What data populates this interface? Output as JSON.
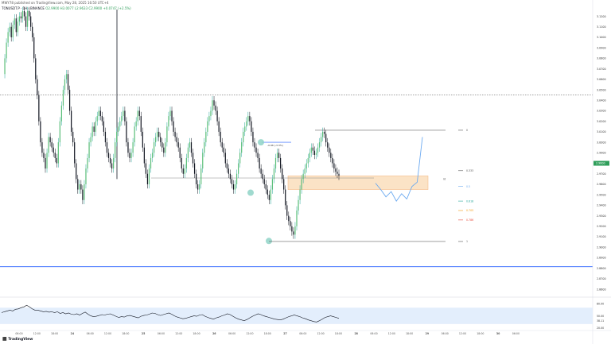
{
  "header": {
    "publisher": "MWY78 published on TradingView.com, May 28, 2025 16:50 UTC+4",
    "symbol": "TONUSDT.P · 1H · BINANCE",
    "ohlc": "O2.9900 H3.0077 L2.9633 C2.9900 +0.0747 (+2.5%)"
  },
  "footer": {
    "brand": "TradingView"
  },
  "colors": {
    "up": "#26a69a",
    "down": "#131722",
    "green_price": "#2f9e5a",
    "blue_line": "#2962ff",
    "zone": "#fbe3c6",
    "rsi_band": "#e3eefc"
  },
  "chart_data": {
    "type": "candlestick",
    "title": "",
    "y_axis_labels": [
      "3.1200",
      "3.1100",
      "3.1000",
      "3.0900",
      "3.0800",
      "3.0700",
      "3.0600",
      "3.0500",
      "3.0400",
      "3.0300",
      "3.0200",
      "3.0100",
      "3.0000",
      "2.9900",
      "2.9800",
      "2.9700",
      "2.9600",
      "2.9500",
      "2.9400",
      "2.9300",
      "2.9200",
      "2.9100",
      "2.9000",
      "2.8900",
      "2.8800",
      "2.8700",
      "2.8600"
    ],
    "ylim": [
      2.854,
      3.128
    ],
    "current_price": "2.9800",
    "x_axis_labels": [
      "06:00",
      "12:00",
      "18:00",
      "24",
      "06:00",
      "12:00",
      "18:00",
      "25",
      "06:00",
      "12:00",
      "18:00",
      "26",
      "06:00",
      "12:00",
      "18:00",
      "27",
      "06:00",
      "12:00",
      "18:00",
      "28",
      "06:00",
      "12:00",
      "18:00",
      "29",
      "06:00",
      "12:00",
      "18:00",
      "30",
      "06:00"
    ],
    "price_path": [
      3.065,
      3.08,
      3.095,
      3.105,
      3.11,
      3.1,
      3.112,
      3.118,
      3.105,
      3.115,
      3.12,
      3.118,
      3.125,
      3.12,
      3.11,
      3.125,
      3.12,
      3.11,
      3.1,
      3.08,
      3.06,
      3.045,
      3.02,
      3.0,
      2.99,
      2.985,
      2.975,
      2.99,
      3.005,
      3.0,
      2.995,
      2.99,
      2.985,
      2.98,
      3.0,
      3.02,
      3.035,
      3.05,
      3.06,
      3.065,
      3.05,
      3.03,
      3.01,
      3.0,
      2.98,
      2.965,
      2.955,
      2.96,
      2.955,
      2.945,
      2.96,
      2.975,
      2.985,
      3.0,
      3.005,
      3.015,
      3.01,
      3.02,
      3.025,
      3.03,
      3.025,
      3.02,
      3.01,
      3.0,
      2.99,
      2.985,
      2.98,
      2.975,
      2.985,
      3.0,
      3.01,
      3.015,
      3.02,
      3.025,
      3.03,
      3.02,
      3.0,
      2.99,
      2.985,
      2.99,
      3.0,
      3.015,
      3.02,
      3.03,
      3.025,
      3.01,
      2.995,
      2.98,
      2.97,
      2.96,
      2.975,
      2.985,
      2.99,
      3.0,
      3.005,
      3.01,
      3.005,
      3.0,
      2.995,
      2.99,
      3.0,
      3.015,
      3.025,
      3.03,
      3.02,
      3.01,
      3.005,
      3.0,
      2.995,
      2.985,
      2.975,
      2.97,
      2.975,
      2.985,
      2.995,
      3.0,
      2.99,
      2.98,
      2.97,
      2.96,
      2.955,
      2.96,
      2.975,
      2.99,
      3.0,
      3.01,
      3.02,
      3.025,
      3.03,
      3.04,
      3.035,
      3.03,
      3.02,
      3.01,
      3.0,
      2.995,
      2.99,
      2.98,
      2.975,
      2.97,
      2.965,
      2.96,
      2.955,
      2.96,
      2.97,
      2.98,
      2.99,
      3.0,
      3.01,
      3.015,
      3.02,
      3.025,
      3.02,
      3.01,
      3.0,
      2.995,
      2.99,
      2.985,
      2.975,
      2.97,
      2.965,
      2.96,
      2.955,
      2.95,
      2.945,
      2.955,
      2.965,
      2.975,
      2.985,
      2.99,
      2.985,
      2.975,
      2.965,
      2.955,
      2.94,
      2.93,
      2.925,
      2.92,
      2.915,
      2.912,
      2.92,
      2.935,
      2.945,
      2.955,
      2.965,
      2.97,
      2.975,
      2.98,
      2.985,
      2.99,
      2.995,
      2.992,
      2.988,
      2.99,
      2.995,
      3.0,
      3.005,
      3.01,
      3.008,
      3.0,
      2.995,
      2.99,
      2.985,
      2.98,
      2.975,
      2.972,
      2.97,
      2.968
    ],
    "fib_levels": [
      {
        "label": "0",
        "value": 3.0115
      },
      {
        "label": "0.333",
        "value": 2.973
      },
      {
        "label": "0.5",
        "value": 2.958
      },
      {
        "label": "0.618",
        "value": 2.944
      },
      {
        "label": "0.705",
        "value": 2.935
      },
      {
        "label": "0.786",
        "value": 2.926
      },
      {
        "label": "1",
        "value": 2.9055
      }
    ],
    "zone_label": "id",
    "measure_label": "-0.96 (-3.3%)",
    "horizontal_lines": [
      {
        "style": "dotted",
        "value": 3.045
      },
      {
        "style": "solid",
        "value": 2.8815
      }
    ],
    "support_line": 2.966,
    "projection_path": [
      2.961,
      2.955,
      2.948,
      2.953,
      2.944,
      2.951,
      2.946,
      2.958,
      2.962,
      3.005
    ],
    "rsi": {
      "labels": [
        "80.00",
        "50.00",
        "38.11",
        "20.00"
      ],
      "band": [
        70,
        30
      ],
      "values": [
        58,
        60,
        62,
        64,
        62,
        66,
        67,
        70,
        72,
        76,
        72,
        67,
        64,
        64,
        62,
        60,
        61,
        59,
        60,
        58,
        60,
        56,
        58,
        55,
        57,
        54,
        53,
        55,
        52,
        56,
        59,
        54,
        50,
        48,
        49,
        51,
        53,
        52,
        54,
        55,
        52,
        49,
        46,
        48,
        47,
        50,
        51,
        49,
        47,
        45,
        49,
        51,
        52,
        54,
        57,
        56,
        53,
        51,
        53,
        55,
        57,
        54,
        50,
        47,
        45,
        43,
        44,
        46,
        48,
        50,
        49,
        52,
        53,
        49,
        46,
        44,
        42,
        45,
        47,
        50,
        52,
        55,
        53,
        49,
        45,
        42,
        40,
        38,
        41,
        45,
        49,
        52,
        55,
        53,
        50,
        48,
        46,
        44,
        42,
        41,
        40,
        42,
        45,
        48,
        50,
        52,
        50,
        48,
        45,
        43,
        40,
        38,
        36,
        35,
        38,
        42,
        46,
        48,
        50,
        48,
        46,
        44
      ]
    }
  }
}
